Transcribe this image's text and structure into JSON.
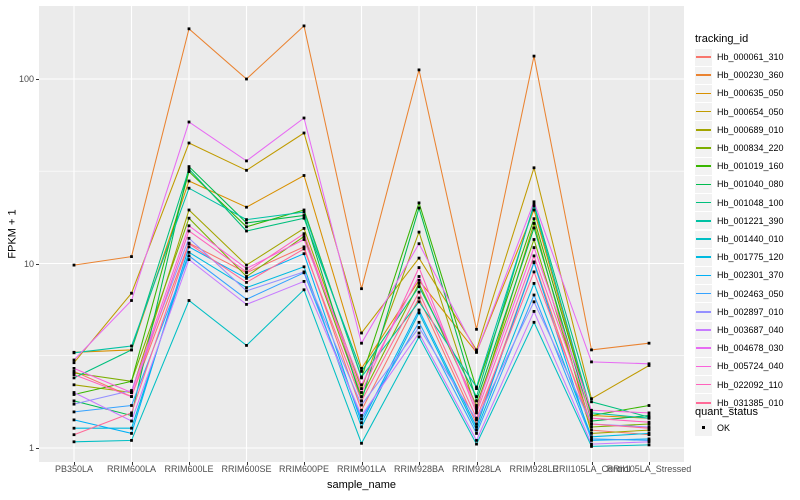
{
  "figure": {
    "background": "#FFFFFF",
    "panel_bg": "#EBEBEB",
    "grid_color": "#FFFFFF",
    "axis_text_color": "#4D4D4D",
    "axis_title_color": "#000000",
    "tick_color": "#333333",
    "legend_key_bg": "#F2F2F2",
    "point_color": "#000000"
  },
  "chart_data": {
    "type": "line",
    "title": "",
    "xlabel": "sample_name",
    "ylabel": "FPKM + 1",
    "y_scale": "log10",
    "grid": "on",
    "legend_position": "right",
    "point_shape": "small-black-square",
    "y_tick_labels": [
      "1",
      "10",
      "100"
    ],
    "y_tick_values": [
      1,
      10,
      100
    ],
    "y_minor_values": [
      3.1623,
      31.623
    ],
    "ylim": [
      0.9,
      250
    ],
    "categories": [
      "PB350LA",
      "RRIM600LA",
      "RRIM600LE",
      "RRIM600SE",
      "RRIM600PE",
      "RRIM901LA",
      "RRIM928BA",
      "RRIM928LA",
      "RRIM928LE",
      "RRII105LA_Control",
      "RRII105LA_Stressed"
    ],
    "series": [
      {
        "name": "Hb_000061_310",
        "color": "#F8766D",
        "values": [
          2.6,
          1.9,
          12.9,
          8.9,
          12.3,
          1.6,
          6.5,
          1.35,
          10.2,
          1.25,
          1.18
        ]
      },
      {
        "name": "Hb_000230_360",
        "color": "#EA8331",
        "values": [
          9.8,
          10.9,
          187,
          100,
          194,
          7.3,
          112,
          4.4,
          133,
          3.4,
          3.7
        ]
      },
      {
        "name": "Hb_000635_050",
        "color": "#D89000",
        "values": [
          3.3,
          3.4,
          28,
          20.2,
          30,
          2.7,
          8.1,
          3.3,
          19.5,
          1.5,
          1.45
        ]
      },
      {
        "name": "Hb_000654_050",
        "color": "#C09B00",
        "values": [
          2.9,
          6.9,
          45,
          32,
          51,
          4.2,
          10.7,
          3.4,
          33,
          1.85,
          2.8
        ]
      },
      {
        "name": "Hb_000689_010",
        "color": "#A3A500",
        "values": [
          2.2,
          2.0,
          19.5,
          9.8,
          15.5,
          2.1,
          14.8,
          1.6,
          16.5,
          1.2,
          1.25
        ]
      },
      {
        "name": "Hb_000834_220",
        "color": "#7CAE00",
        "values": [
          2.55,
          2.3,
          17.6,
          8.5,
          14.0,
          1.9,
          7.8,
          1.7,
          13.5,
          1.3,
          1.35
        ]
      },
      {
        "name": "Hb_001019_160",
        "color": "#39B600",
        "values": [
          1.95,
          2.3,
          31.5,
          15.8,
          19.5,
          2.4,
          21.3,
          2.1,
          17.5,
          1.5,
          1.7
        ]
      },
      {
        "name": "Hb_001040_080",
        "color": "#00BB4E",
        "values": [
          1.8,
          1.5,
          33.5,
          16.6,
          18.2,
          1.8,
          20.0,
          1.8,
          15.6,
          1.4,
          1.5
        ]
      },
      {
        "name": "Hb_001048_100",
        "color": "#00BF7D",
        "values": [
          2.4,
          3.4,
          32.5,
          15.0,
          17.6,
          2.6,
          7.5,
          1.9,
          21.0,
          1.78,
          1.47
        ]
      },
      {
        "name": "Hb_001221_390",
        "color": "#00C1A3",
        "values": [
          3.28,
          3.57,
          25.6,
          17.3,
          19.0,
          2.43,
          6.2,
          2.14,
          20.5,
          1.55,
          1.45
        ]
      },
      {
        "name": "Hb_001440_010",
        "color": "#00BFC4",
        "values": [
          1.08,
          1.1,
          6.3,
          3.6,
          7.2,
          1.06,
          4.0,
          1.05,
          4.8,
          1.02,
          1.04
        ]
      },
      {
        "name": "Hb_001775_120",
        "color": "#00BAE0",
        "values": [
          1.28,
          1.28,
          11.5,
          7.4,
          9.6,
          1.3,
          5.4,
          1.25,
          7.8,
          1.15,
          1.2
        ]
      },
      {
        "name": "Hb_002301_370",
        "color": "#00B0F6",
        "values": [
          1.42,
          1.2,
          12.3,
          8.3,
          11.3,
          1.37,
          5.6,
          1.3,
          10.1,
          1.1,
          1.12
        ]
      },
      {
        "name": "Hb_002463_050",
        "color": "#35A2FF",
        "values": [
          1.57,
          1.7,
          11.0,
          6.4,
          8.9,
          1.44,
          4.8,
          1.2,
          6.75,
          1.12,
          1.1
        ]
      },
      {
        "name": "Hb_002897_010",
        "color": "#9590FF",
        "values": [
          1.73,
          2.05,
          13.7,
          7.1,
          9.0,
          1.71,
          4.5,
          1.42,
          6.2,
          1.35,
          1.3
        ]
      },
      {
        "name": "Hb_003687_040",
        "color": "#C77CFF",
        "values": [
          2.0,
          1.4,
          10.5,
          6.0,
          8.0,
          1.5,
          4.2,
          1.1,
          5.5,
          1.05,
          1.08
        ]
      },
      {
        "name": "Hb_004678_030",
        "color": "#E76BF3",
        "values": [
          3.0,
          6.3,
          58.5,
          36,
          61.5,
          3.7,
          12.8,
          3.3,
          21.6,
          2.93,
          2.86
        ]
      },
      {
        "name": "Hb_005724_040",
        "color": "#FA62DB",
        "values": [
          2.7,
          2.0,
          16.0,
          9.4,
          13.5,
          2.2,
          8.5,
          1.65,
          12.2,
          1.6,
          1.55
        ]
      },
      {
        "name": "Hb_022092_110",
        "color": "#FF62BC",
        "values": [
          2.5,
          1.9,
          15.0,
          9.0,
          14.5,
          2.0,
          9.5,
          1.55,
          11.0,
          1.45,
          1.38
        ]
      },
      {
        "name": "Hb_031385_010",
        "color": "#FF6A98",
        "values": [
          1.18,
          1.55,
          12.8,
          7.9,
          12.0,
          1.8,
          7.0,
          1.45,
          9.0,
          1.35,
          1.28
        ]
      }
    ],
    "legend": {
      "tracking_title": "tracking_id",
      "quant_title": "quant_status",
      "quant_items": [
        {
          "label": "OK",
          "marker": "black-square",
          "marker_color": "#000000"
        }
      ]
    }
  }
}
